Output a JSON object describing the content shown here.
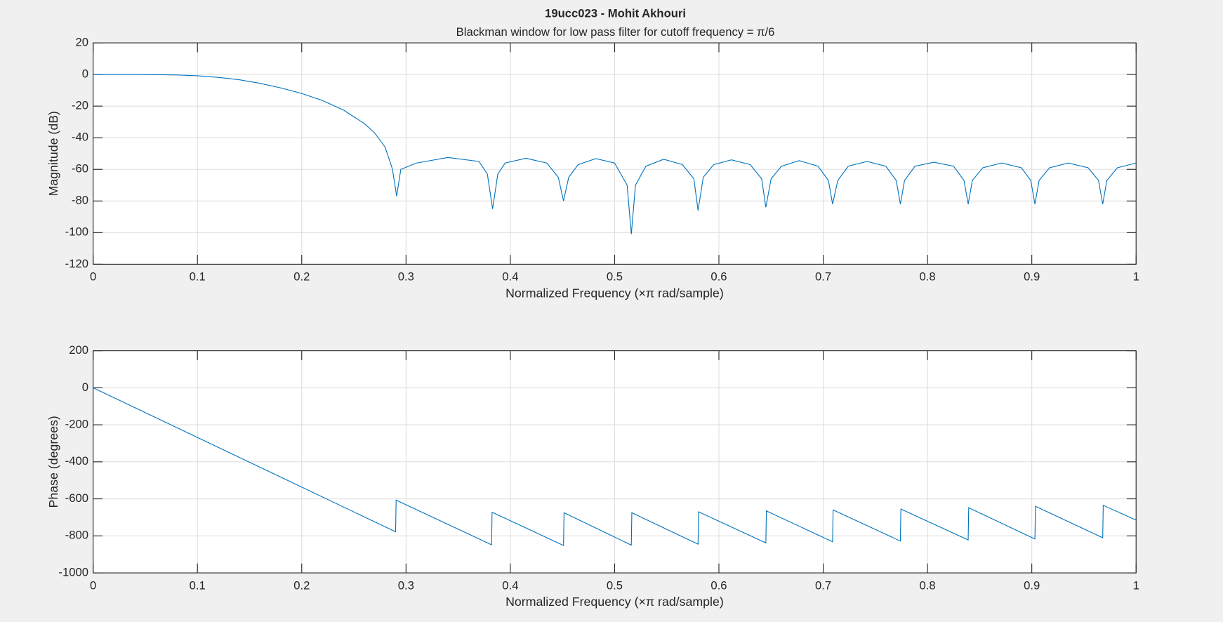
{
  "chart_data": [
    {
      "type": "line",
      "title": "19ucc023 - Mohit Akhouri",
      "subtitle": "Blackman window for low pass filter for cutoff frequency = π/6",
      "xlabel": "Normalized Frequency  (×π rad/sample)",
      "ylabel": "Magnitude (dB)",
      "xlim": [
        0,
        1
      ],
      "ylim": [
        -120,
        20
      ],
      "xticks": [
        0,
        0.1,
        0.2,
        0.3,
        0.4,
        0.5,
        0.6,
        0.7,
        0.8,
        0.9,
        1
      ],
      "yticks": [
        -120,
        -100,
        -80,
        -60,
        -40,
        -20,
        0,
        20
      ],
      "grid": true,
      "color": "#0072bd",
      "x": [
        0,
        0.02,
        0.04,
        0.06,
        0.08,
        0.1,
        0.12,
        0.14,
        0.16,
        0.18,
        0.2,
        0.22,
        0.24,
        0.26,
        0.27,
        0.28,
        0.287,
        0.291,
        0.295,
        0.31,
        0.34,
        0.37,
        0.378,
        0.383,
        0.388,
        0.395,
        0.415,
        0.435,
        0.446,
        0.451,
        0.456,
        0.465,
        0.482,
        0.5,
        0.512,
        0.516,
        0.52,
        0.53,
        0.547,
        0.565,
        0.576,
        0.58,
        0.585,
        0.595,
        0.612,
        0.63,
        0.641,
        0.645,
        0.65,
        0.66,
        0.677,
        0.695,
        0.705,
        0.709,
        0.714,
        0.724,
        0.742,
        0.76,
        0.77,
        0.774,
        0.778,
        0.788,
        0.806,
        0.825,
        0.835,
        0.839,
        0.843,
        0.853,
        0.871,
        0.89,
        0.899,
        0.903,
        0.907,
        0.917,
        0.935,
        0.954,
        0.964,
        0.968,
        0.972,
        0.982,
        1
      ],
      "values": [
        0,
        0,
        0,
        -0.1,
        -0.3,
        -0.8,
        -1.8,
        -3.3,
        -5.6,
        -8.5,
        -12,
        -16.5,
        -22.5,
        -31,
        -37,
        -46,
        -60,
        -77,
        -60,
        -56,
        -52.5,
        -55,
        -63,
        -85,
        -63,
        -56,
        -53,
        -56,
        -65,
        -80,
        -65,
        -57,
        -53.2,
        -56,
        -70,
        -101,
        -70,
        -58,
        -53.6,
        -57,
        -66,
        -86,
        -65,
        -57,
        -54,
        -57,
        -66,
        -84,
        -66,
        -58,
        -54.5,
        -58,
        -67,
        -82,
        -67,
        -58,
        -55,
        -58,
        -67,
        -82,
        -67,
        -58,
        -55.5,
        -58,
        -67,
        -82,
        -67,
        -59,
        -56,
        -59,
        -67,
        -82,
        -67,
        -59,
        -56,
        -59,
        -67,
        -82,
        -67,
        -59,
        -56
      ]
    },
    {
      "type": "line",
      "xlabel": "Normalized Frequency  (×π rad/sample)",
      "ylabel": "Phase (degrees)",
      "xlim": [
        0,
        1
      ],
      "ylim": [
        -1000,
        200
      ],
      "xticks": [
        0,
        0.1,
        0.2,
        0.3,
        0.4,
        0.5,
        0.6,
        0.7,
        0.8,
        0.9,
        1
      ],
      "yticks": [
        -1000,
        -800,
        -600,
        -400,
        -200,
        0,
        200
      ],
      "grid": true,
      "color": "#0072bd",
      "x": [
        0,
        0.29,
        0.2905,
        0.382,
        0.3825,
        0.451,
        0.4515,
        0.516,
        0.5165,
        0.58,
        0.5805,
        0.645,
        0.6455,
        0.709,
        0.7095,
        0.774,
        0.7745,
        0.839,
        0.8395,
        0.903,
        0.9035,
        0.968,
        0.9685,
        1
      ],
      "values": [
        0,
        -778,
        -607,
        -848,
        -672,
        -852,
        -675,
        -850,
        -675,
        -845,
        -670,
        -838,
        -665,
        -832,
        -660,
        -828,
        -655,
        -822,
        -648,
        -817,
        -640,
        -810,
        -635,
        -715
      ]
    }
  ]
}
